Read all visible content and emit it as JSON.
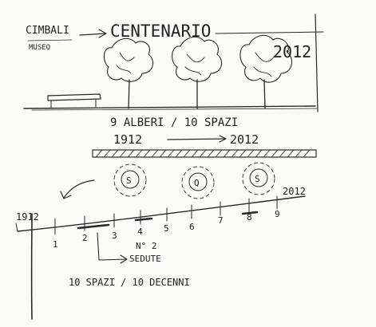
{
  "labels": {
    "cimbali": "CIMBALI",
    "museo": "MUSEO",
    "centenario": "CENTENARIO",
    "year_elevation": "2012",
    "trees_spaces": "9 ALBERI / 10 SPAZI",
    "year_start": "1912",
    "year_end": "2012",
    "axis_start": "1912",
    "axis_end": "2012",
    "seats_line1": "N° 2",
    "seats_line2": "SEDUTE",
    "spaces_decades": "10 SPAZI / 10 DECENNI"
  },
  "axis_numbers": [
    "1",
    "2",
    "3",
    "4",
    "5",
    "6",
    "7",
    "8",
    "9"
  ],
  "plan_tree_marks": [
    "S",
    "Q",
    "S"
  ]
}
